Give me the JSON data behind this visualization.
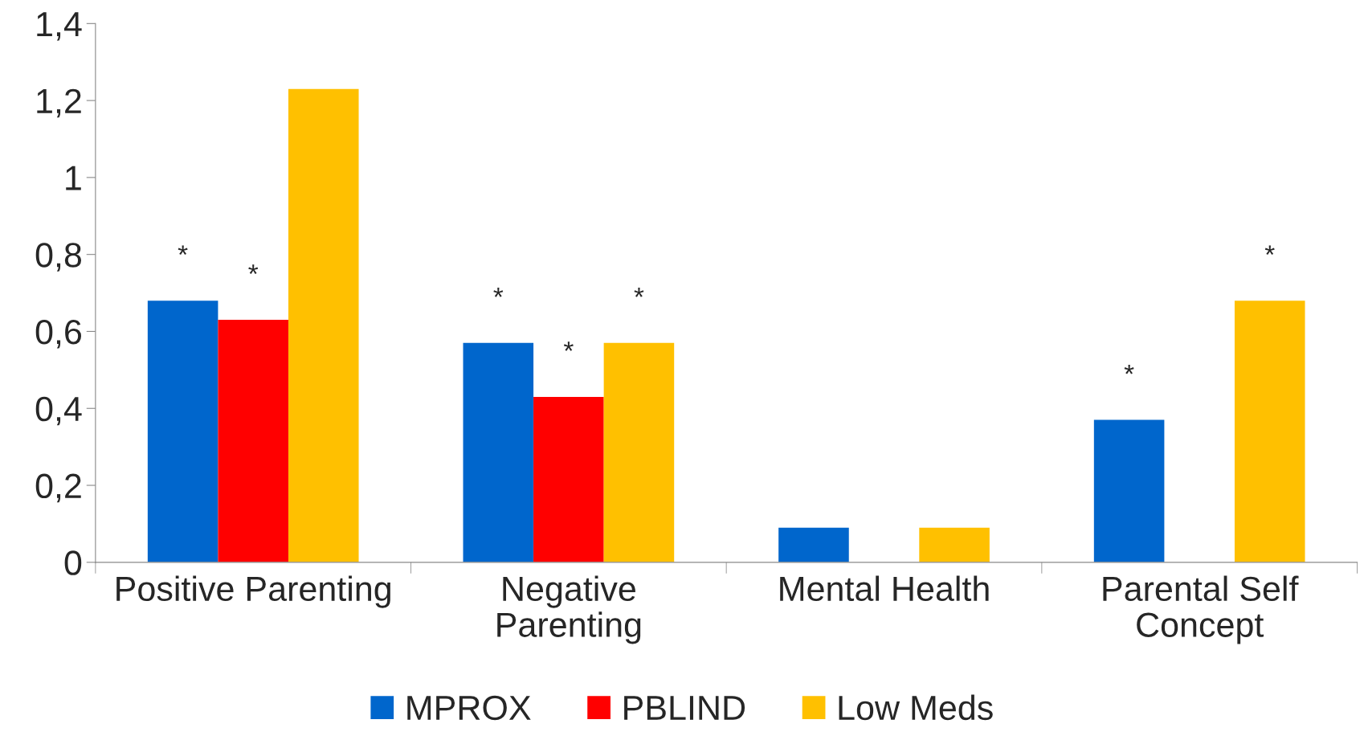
{
  "chart_data": {
    "type": "bar",
    "categories": [
      "Positive Parenting",
      "Negative\nParenting",
      "Mental Health",
      "Parental Self\nConcept"
    ],
    "series": [
      {
        "name": "MPROX",
        "color": "#0066cc",
        "values": [
          0.68,
          0.57,
          0.09,
          0.37
        ],
        "value_labels": [
          "*",
          "*",
          null,
          "*"
        ]
      },
      {
        "name": "PBLIND",
        "color": "#ff0000",
        "values": [
          0.63,
          0.43,
          null,
          null
        ],
        "value_labels": [
          "*",
          "*",
          null,
          null
        ]
      },
      {
        "name": "Low Meds",
        "color": "#ffc000",
        "values": [
          1.23,
          0.57,
          0.09,
          0.68
        ],
        "value_labels": [
          null,
          "*",
          null,
          "*"
        ]
      }
    ],
    "ylim": [
      0,
      1.4
    ],
    "yticks": [
      0,
      {
        "value": 0.2,
        "label": "0,2"
      },
      {
        "value": 0.4,
        "label": "0,4"
      },
      {
        "value": 0.6,
        "label": "0,6"
      },
      {
        "value": 0.8,
        "label": "0,8"
      },
      1,
      {
        "value": 1.2,
        "label": "1,2"
      },
      {
        "value": 1.4,
        "label": "1,4"
      }
    ],
    "grid": false,
    "legend": "bottom"
  }
}
